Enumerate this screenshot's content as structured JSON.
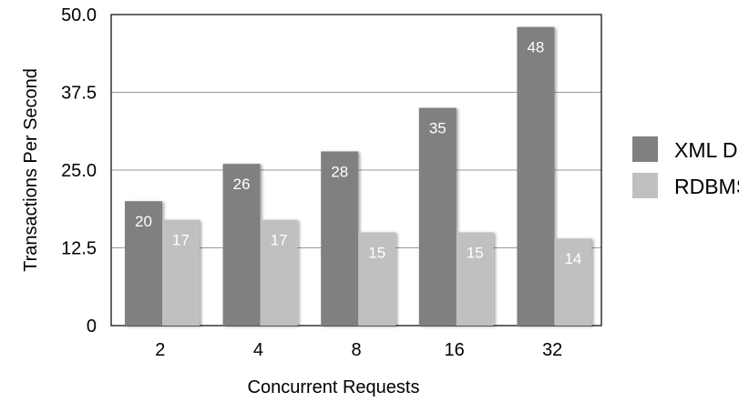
{
  "chart_data": {
    "type": "bar",
    "title": "",
    "xlabel": "Concurrent Requests",
    "ylabel": "Transactions Per Second",
    "ylim": [
      0,
      50
    ],
    "yticks": [
      "0",
      "12.5",
      "25.0",
      "37.5",
      "50.0"
    ],
    "categories": [
      "2",
      "4",
      "8",
      "16",
      "32"
    ],
    "series": [
      {
        "name": "XML DB",
        "values": [
          20,
          26,
          28,
          35,
          48
        ],
        "color": "#808080"
      },
      {
        "name": "RDBMS",
        "values": [
          17,
          17,
          15,
          15,
          14
        ],
        "color": "#c0c0c0"
      }
    ],
    "grid": true,
    "legend": "right"
  }
}
